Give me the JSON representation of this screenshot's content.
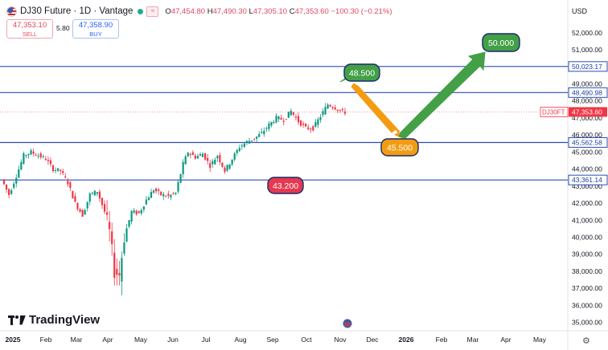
{
  "header": {
    "title": "DJ30 Future · 1D · Vantage",
    "ohlc": [
      {
        "key": "O",
        "value": "47,454.80"
      },
      {
        "key": "H",
        "value": "47,490.30"
      },
      {
        "key": "L",
        "value": "47,305.10"
      },
      {
        "key": "C",
        "value": "47,353.60"
      }
    ],
    "change": "−100.30 (−0.21%)",
    "mini_icon": "≈"
  },
  "trade": {
    "sell_price": "47,353.10",
    "sell_label": "SELL",
    "spread": "5.80",
    "buy_price": "47,358.90",
    "buy_label": "BUY"
  },
  "currency": "USD",
  "brand": "TradingView",
  "colors": {
    "up": "#089981",
    "down": "#f23645",
    "hline": "#2a4db7",
    "green": "#43a047",
    "orange": "#f39c12",
    "red_label": "#e53950"
  },
  "chart_data": {
    "type": "candlestick",
    "x_ticks": [
      "2025",
      "Feb",
      "Mar",
      "Apr",
      "May",
      "Jun",
      "Jul",
      "Aug",
      "Sep",
      "Oct",
      "Nov",
      "Dec",
      "2026",
      "Feb",
      "Mar",
      "Apr",
      "May"
    ],
    "y_ticks": [
      "52,000.00",
      "51,000.00",
      "50,000.00",
      "49,000.00",
      "48,000.00",
      "47,000.00",
      "46,000.00",
      "45,000.00",
      "44,000.00",
      "43,000.00",
      "42,000.00",
      "41,000.00",
      "40,000.00",
      "39,000.00",
      "38,000.00",
      "37,000.00",
      "36,000.00",
      "35,000.00"
    ],
    "ylim": [
      34700,
      52700
    ],
    "price_path": [
      [
        0,
        43400
      ],
      [
        3,
        42500
      ],
      [
        6,
        43600
      ],
      [
        9,
        44800
      ],
      [
        12,
        45000
      ],
      [
        15,
        44800
      ],
      [
        18,
        44600
      ],
      [
        21,
        44000
      ],
      [
        24,
        43900
      ],
      [
        27,
        43200
      ],
      [
        30,
        42000
      ],
      [
        33,
        41300
      ],
      [
        36,
        42500
      ],
      [
        39,
        42700
      ],
      [
        42,
        41500
      ],
      [
        44,
        40300
      ],
      [
        46,
        38000
      ],
      [
        48,
        37800
      ],
      [
        50,
        40000
      ],
      [
        53,
        41500
      ],
      [
        56,
        41400
      ],
      [
        59,
        42200
      ],
      [
        62,
        42800
      ],
      [
        65,
        42500
      ],
      [
        68,
        42400
      ],
      [
        71,
        42600
      ],
      [
        74,
        44300
      ],
      [
        76,
        45000
      ],
      [
        79,
        44700
      ],
      [
        82,
        44900
      ],
      [
        85,
        44200
      ],
      [
        88,
        44800
      ],
      [
        91,
        43900
      ],
      [
        94,
        44600
      ],
      [
        97,
        45300
      ],
      [
        100,
        45600
      ],
      [
        103,
        45800
      ],
      [
        106,
        46100
      ],
      [
        109,
        46600
      ],
      [
        112,
        47000
      ],
      [
        115,
        46900
      ],
      [
        118,
        47400
      ],
      [
        121,
        46800
      ],
      [
        124,
        46400
      ],
      [
        127,
        46400
      ],
      [
        130,
        47100
      ],
      [
        133,
        47800
      ],
      [
        136,
        47600
      ],
      [
        139,
        47350
      ]
    ],
    "horizontal_levels": [
      {
        "price": 50023.17,
        "label": "50,023.17"
      },
      {
        "price": 48490.98,
        "label": "48,490.98"
      },
      {
        "price": 45562.58,
        "label": "45,562.58"
      },
      {
        "price": 43361.14,
        "label": "43,361.14"
      }
    ],
    "current_price": {
      "symbol": "DJ30FT",
      "value": "47,353.60",
      "price": 47353.6
    },
    "annotations": [
      {
        "text": "48.500",
        "color": "green",
        "price": 48450
      },
      {
        "text": "45.500",
        "color": "orange",
        "price": 45250
      },
      {
        "text": "50.000",
        "color": "green",
        "price": 50950
      },
      {
        "text": "43.200",
        "color": "red",
        "price": 43200
      }
    ]
  }
}
